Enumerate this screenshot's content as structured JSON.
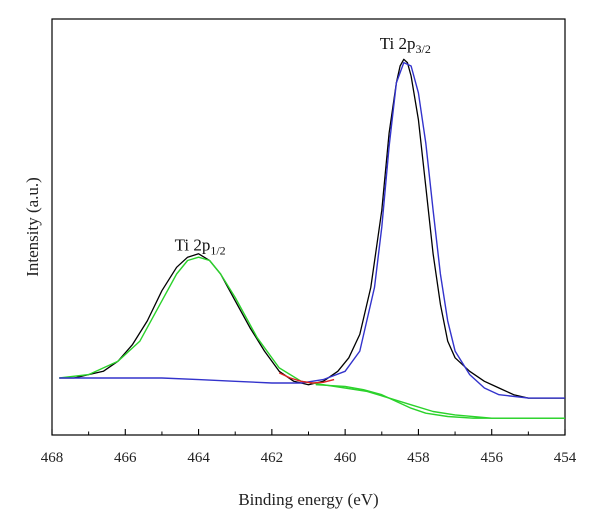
{
  "chart_data": {
    "type": "line",
    "xlabel": "Binding energy (eV)",
    "ylabel": "Intensity (a.u.)",
    "xlim": [
      468,
      454
    ],
    "x_reversed": true,
    "ylim": [
      -0.12,
      1.12
    ],
    "y_ticks_shown": false,
    "grid": false,
    "legend": "none",
    "x_ticks": [
      468,
      466,
      464,
      462,
      460,
      458,
      456,
      454
    ],
    "x_tick_labels": [
      "468",
      "466",
      "464",
      "462",
      "460",
      "458",
      "456",
      "454"
    ],
    "annotations": [
      {
        "base": "Ti 2p",
        "sub": "1/2",
        "x": 464.0,
        "y": 0.43
      },
      {
        "base": "Ti 2p",
        "sub": "3/2",
        "x": 458.4,
        "y": 1.03
      }
    ],
    "series": [
      {
        "role": "raw-data",
        "color": "#000000",
        "x": [
          467.8,
          467.4,
          467.0,
          466.6,
          466.2,
          465.8,
          465.4,
          465.0,
          464.6,
          464.3,
          464.0,
          463.7,
          463.4,
          463.0,
          462.6,
          462.2,
          461.8,
          461.4,
          461.0,
          460.6,
          460.2,
          459.9,
          459.6,
          459.3,
          459.0,
          458.8,
          458.6,
          458.5,
          458.4,
          458.3,
          458.2,
          458.0,
          457.8,
          457.6,
          457.4,
          457.2,
          457.0,
          456.6,
          456.2,
          455.8,
          455.4,
          455.0,
          454.6,
          454.0
        ],
        "y": [
          0.05,
          0.05,
          0.06,
          0.07,
          0.1,
          0.15,
          0.22,
          0.31,
          0.38,
          0.41,
          0.42,
          0.4,
          0.36,
          0.28,
          0.2,
          0.13,
          0.07,
          0.04,
          0.03,
          0.04,
          0.07,
          0.11,
          0.18,
          0.32,
          0.55,
          0.78,
          0.93,
          0.98,
          1.0,
          0.99,
          0.95,
          0.82,
          0.62,
          0.42,
          0.27,
          0.16,
          0.11,
          0.07,
          0.04,
          0.02,
          0.0,
          -0.01,
          -0.01,
          -0.01
        ]
      },
      {
        "role": "Ti 2p1/2 fit",
        "color": "#2bd22b",
        "x": [
          467.8,
          467.0,
          466.2,
          465.6,
          465.0,
          464.6,
          464.3,
          464.0,
          463.7,
          463.4,
          463.0,
          462.4,
          461.8,
          461.2,
          460.6,
          460.0,
          459.4,
          458.8,
          458.2,
          457.6,
          457.0,
          456.0,
          455.0,
          454.0
        ],
        "y": [
          0.05,
          0.06,
          0.1,
          0.16,
          0.28,
          0.36,
          0.4,
          0.41,
          0.4,
          0.36,
          0.29,
          0.17,
          0.08,
          0.04,
          0.03,
          0.02,
          0.01,
          -0.01,
          -0.03,
          -0.05,
          -0.06,
          -0.07,
          -0.07,
          -0.07
        ]
      },
      {
        "role": "Ti 2p3/2 fit",
        "color": "#3333cc",
        "x": [
          467.8,
          466.5,
          465.0,
          464.0,
          463.0,
          462.0,
          461.2,
          460.6,
          460.0,
          459.6,
          459.2,
          459.0,
          458.8,
          458.6,
          458.4,
          458.2,
          458.0,
          457.8,
          457.6,
          457.4,
          457.2,
          457.0,
          456.6,
          456.2,
          455.8,
          455.0,
          454.0
        ],
        "y": [
          0.05,
          0.05,
          0.05,
          0.045,
          0.04,
          0.035,
          0.035,
          0.045,
          0.07,
          0.13,
          0.32,
          0.5,
          0.74,
          0.93,
          0.99,
          0.98,
          0.9,
          0.75,
          0.55,
          0.36,
          0.22,
          0.13,
          0.06,
          0.02,
          0.0,
          -0.01,
          -0.01
        ]
      },
      {
        "role": "envelope",
        "color": "#dd2222",
        "x": [
          461.8,
          461.5,
          461.2,
          460.9,
          460.6,
          460.3
        ],
        "y": [
          0.065,
          0.05,
          0.04,
          0.035,
          0.037,
          0.045
        ]
      },
      {
        "role": "background",
        "color": "#2bd22b",
        "x": [
          460.8,
          460.0,
          459.5,
          459.0,
          458.6,
          458.2,
          457.8,
          457.2,
          456.5,
          455.5,
          454.0
        ],
        "y": [
          0.03,
          0.025,
          0.015,
          0.0,
          -0.02,
          -0.04,
          -0.055,
          -0.065,
          -0.07,
          -0.07,
          -0.07
        ]
      }
    ]
  }
}
